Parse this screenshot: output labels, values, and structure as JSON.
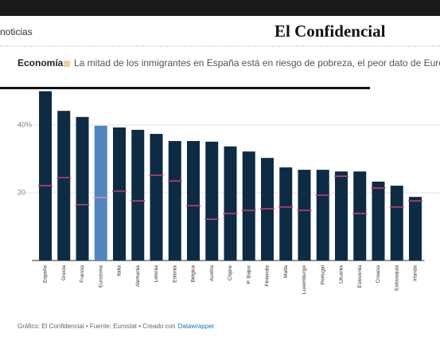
{
  "header": {
    "nav": "noticias",
    "logo": "El Confidencial",
    "section": "Economía",
    "headline": "La mitad de los inmigrantes en España está en riesgo de pobreza, el peor dato de Europ"
  },
  "chart_data": {
    "type": "bar",
    "categories": [
      "España",
      "Grecia",
      "Francia",
      "Eurozona",
      "Italia",
      "Alemania",
      "Letonia",
      "Estonia",
      "Bélgica",
      "Austria",
      "Chipre",
      "P. Bajos",
      "Finlandia",
      "Malta",
      "Luxemburgo",
      "Portugal",
      "Lituania",
      "Eslovenia",
      "Croacia",
      "Eslovaquia",
      "Irlanda"
    ],
    "series": [
      {
        "color": "#0e2b44",
        "highlight": {
          "index": 3,
          "color": "#4e87bd"
        },
        "values": [
          50,
          44.2,
          42.4,
          39.8,
          39.3,
          38.6,
          37.4,
          35.3,
          35.3,
          35.1,
          33.7,
          32.2,
          30.3,
          27.5,
          26.8,
          26.8,
          26.3,
          26.3,
          23.3,
          22.1,
          18.8
        ]
      },
      {
        "marker": "dash",
        "color": "#c0416b",
        "highlight": {
          "index": 3,
          "color": "#d98aa6"
        },
        "values": [
          22.1,
          24.5,
          16.5,
          18.6,
          20.5,
          17.6,
          25.2,
          23.5,
          16.2,
          12.2,
          13.9,
          14.8,
          15.3,
          15.8,
          14.8,
          19.3,
          24.9,
          13.9,
          21.4,
          15.8,
          17.6
        ]
      }
    ],
    "ylim": [
      0,
      50
    ],
    "yticks": [
      20,
      {
        "value": 40,
        "label": "40%"
      }
    ],
    "grid": true
  },
  "footer": {
    "text": "Gráfico: El Confidencial • Fuente: Eurostat • Creado con",
    "link": "Datawrapper"
  }
}
